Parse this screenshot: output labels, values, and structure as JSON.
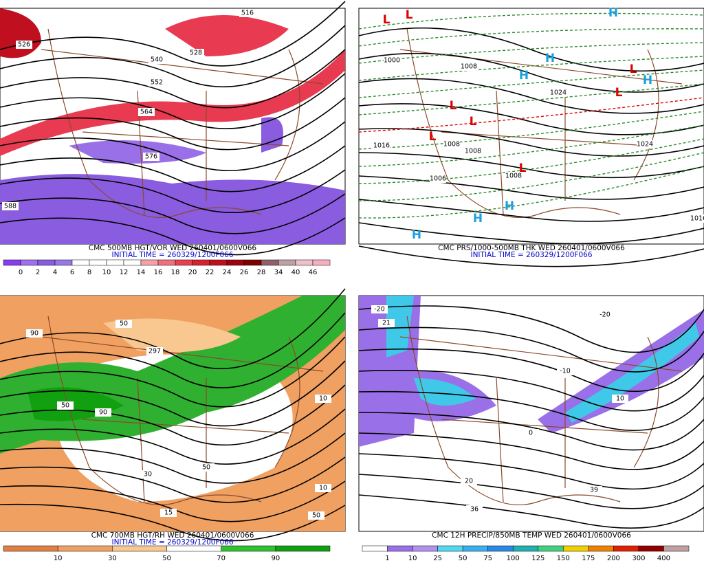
{
  "panels": [
    {
      "caption": "CMC 500MB HGT/VOR WED 260401/0600V066",
      "initial_time": "INITIAL TIME = 260329/1200F066",
      "colorbar": [
        0,
        2,
        4,
        6,
        8,
        10,
        12,
        14,
        16,
        18,
        20,
        22,
        24,
        26,
        28,
        34,
        40,
        46
      ],
      "contour_labels": [
        "516",
        "526",
        "540",
        "528",
        "552",
        "564",
        "576",
        "588"
      ],
      "pressure_centers": []
    },
    {
      "caption": "CMC PRS/1000-500MB THK WED 260401/0600V066",
      "initial_time": "INITIAL TIME = 260329/1200F066",
      "colorbar": [],
      "contour_labels": [
        "1000",
        "1008",
        "1024",
        "1016",
        "1008",
        "1008",
        "1008",
        "1006",
        "1024",
        "1016"
      ],
      "pressure_centers": [
        "L",
        "L",
        "L",
        "L",
        "L",
        "L",
        "L",
        "L",
        "H",
        "H",
        "H",
        "H",
        "H",
        "H",
        "H"
      ]
    },
    {
      "caption": "CMC 700MB HGT/RH WED 260401/0600V066",
      "initial_time": "INITIAL TIME = 260329/1200F066",
      "colorbar": [
        10,
        30,
        50,
        70,
        90
      ],
      "contour_labels": [
        "297",
        "50",
        "90",
        "50",
        "10",
        "50",
        "10",
        "30",
        "90",
        "50",
        "15"
      ],
      "pressure_centers": []
    },
    {
      "caption": "CMC 12H PRECIP/850MB TEMP WED 260401/0600V066",
      "initial_time": "",
      "colorbar": [
        1,
        10,
        25,
        50,
        75,
        100,
        125,
        150,
        175,
        200,
        300,
        400
      ],
      "contour_labels": [
        "-20",
        "-10",
        "0",
        "10",
        "20",
        "39",
        "36",
        "21",
        "-20"
      ],
      "pressure_centers": []
    }
  ]
}
